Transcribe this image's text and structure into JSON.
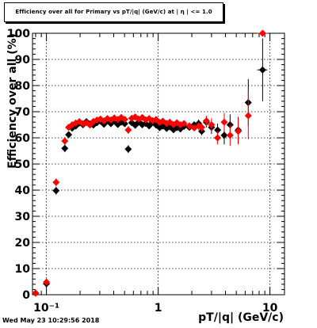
{
  "canvas": {
    "footer_text": "Wed May 23 10:29:56 2018"
  },
  "chart_data": {
    "type": "scatter",
    "title": "Efficiency over all for Primary vs pT/|q| (GeV/c) at | η | <= 1.0",
    "xlabel": "pT/|q| (GeV/c)",
    "ylabel": "Efficiency over all (%)",
    "x_scale": "log",
    "xlim": [
      0.075,
      13.5
    ],
    "ylim": [
      0,
      100
    ],
    "grid": true,
    "x_ticks": [
      {
        "v": 0.1,
        "label": "10⁻¹"
      },
      {
        "v": 1,
        "label": "1"
      },
      {
        "v": 10,
        "label": "10"
      }
    ],
    "y_ticks": [
      0,
      10,
      20,
      30,
      40,
      50,
      60,
      70,
      80,
      90,
      100
    ],
    "series": [
      {
        "color": "#000000",
        "points": [
          {
            "x": 0.08,
            "y": 0.6,
            "xerr": 0.004,
            "yerr": 0.5
          },
          {
            "x": 0.1,
            "y": 4.2,
            "xerr": 0.005,
            "yerr": 1.2
          },
          {
            "x": 0.122,
            "y": 39.8,
            "xerr": 0.006,
            "yerr": 1.5
          },
          {
            "x": 0.146,
            "y": 56.0,
            "xerr": 0.006,
            "yerr": 1.5
          },
          {
            "x": 0.158,
            "y": 61.2,
            "yerr": 1.0
          },
          {
            "x": 0.17,
            "y": 63.7,
            "yerr": 1.0
          },
          {
            "x": 0.183,
            "y": 64.5
          },
          {
            "x": 0.197,
            "y": 65.7
          },
          {
            "x": 0.212,
            "y": 65.0
          },
          {
            "x": 0.228,
            "y": 66.2
          },
          {
            "x": 0.245,
            "y": 65.3
          },
          {
            "x": 0.263,
            "y": 64.9
          },
          {
            "x": 0.283,
            "y": 65.8
          },
          {
            "x": 0.304,
            "y": 66.4
          },
          {
            "x": 0.327,
            "y": 65.2
          },
          {
            "x": 0.351,
            "y": 66.6
          },
          {
            "x": 0.377,
            "y": 65.4
          },
          {
            "x": 0.405,
            "y": 66.5
          },
          {
            "x": 0.435,
            "y": 65.1
          },
          {
            "x": 0.467,
            "y": 66.0
          },
          {
            "x": 0.502,
            "y": 65.4
          },
          {
            "x": 0.54,
            "y": 55.7,
            "yerr": 1.5
          },
          {
            "x": 0.58,
            "y": 65.8
          },
          {
            "x": 0.623,
            "y": 64.8
          },
          {
            "x": 0.67,
            "y": 66.1
          },
          {
            "x": 0.72,
            "y": 65.0
          },
          {
            "x": 0.773,
            "y": 65.5
          },
          {
            "x": 0.83,
            "y": 64.6
          },
          {
            "x": 0.892,
            "y": 66.0
          },
          {
            "x": 0.958,
            "y": 64.9
          },
          {
            "x": 1.03,
            "y": 63.9
          },
          {
            "x": 1.1,
            "y": 64.5
          },
          {
            "x": 1.19,
            "y": 63.6
          },
          {
            "x": 1.27,
            "y": 64.2
          },
          {
            "x": 1.37,
            "y": 63.1,
            "yerr": 1.0
          },
          {
            "x": 1.47,
            "y": 63.9
          },
          {
            "x": 1.58,
            "y": 63.4
          },
          {
            "x": 1.7,
            "y": 64.4
          },
          {
            "x": 1.9,
            "y": 64.0,
            "xerr": 0.06
          },
          {
            "x": 2.1,
            "y": 65.0,
            "xerr": 0.06
          },
          {
            "x": 2.3,
            "y": 65.5,
            "xerr": 0.07,
            "yerr": 1.5
          },
          {
            "x": 2.45,
            "y": 62.5,
            "xerr": 0.07,
            "yerr": 1.5
          },
          {
            "x": 2.7,
            "y": 66.0,
            "xerr": 0.08,
            "yerr": 2.0
          },
          {
            "x": 3.0,
            "y": 64.0,
            "xerr": 0.1,
            "yerr": 2.5
          },
          {
            "x": 3.4,
            "y": 63.0,
            "xerr": 0.15,
            "yerr": 2.5
          },
          {
            "x": 3.9,
            "y": 61.0,
            "xerr": 0.15,
            "yerr": 3.5
          },
          {
            "x": 4.4,
            "y": 65.0,
            "xerr": 0.2,
            "yerr": 4.0
          },
          {
            "x": 5.2,
            "y": 63.0,
            "xerr": 0.3,
            "yerr": 5.0
          },
          {
            "x": 6.4,
            "y": 73.5,
            "xerr": 0.4,
            "yerr": 9.0
          },
          {
            "x": 8.6,
            "y": 86.0,
            "xerr": 0.9,
            "yerr": 12.0
          }
        ]
      },
      {
        "color": "#ff0000",
        "points": [
          {
            "x": 0.08,
            "y": 0.6,
            "xerr": 0.004,
            "yerr": 0.5
          },
          {
            "x": 0.1,
            "y": 4.8,
            "xerr": 0.005,
            "yerr": 1.2
          },
          {
            "x": 0.122,
            "y": 43.0,
            "xerr": 0.006,
            "yerr": 1.5
          },
          {
            "x": 0.146,
            "y": 58.8,
            "xerr": 0.006,
            "yerr": 1.5
          },
          {
            "x": 0.158,
            "y": 64.0,
            "yerr": 1.0
          },
          {
            "x": 0.17,
            "y": 65.0,
            "yerr": 1.0
          },
          {
            "x": 0.183,
            "y": 65.7
          },
          {
            "x": 0.197,
            "y": 66.2
          },
          {
            "x": 0.212,
            "y": 65.4
          },
          {
            "x": 0.228,
            "y": 65.8
          },
          {
            "x": 0.245,
            "y": 64.9
          },
          {
            "x": 0.263,
            "y": 66.3
          },
          {
            "x": 0.283,
            "y": 66.8
          },
          {
            "x": 0.304,
            "y": 67.2
          },
          {
            "x": 0.327,
            "y": 66.5
          },
          {
            "x": 0.351,
            "y": 67.4
          },
          {
            "x": 0.377,
            "y": 66.9
          },
          {
            "x": 0.405,
            "y": 67.6
          },
          {
            "x": 0.435,
            "y": 67.0
          },
          {
            "x": 0.467,
            "y": 67.8
          },
          {
            "x": 0.502,
            "y": 67.1
          },
          {
            "x": 0.54,
            "y": 63.0,
            "yerr": 1.5
          },
          {
            "x": 0.58,
            "y": 67.5
          },
          {
            "x": 0.623,
            "y": 68.0
          },
          {
            "x": 0.67,
            "y": 67.2
          },
          {
            "x": 0.72,
            "y": 67.8
          },
          {
            "x": 0.773,
            "y": 66.9
          },
          {
            "x": 0.83,
            "y": 67.4
          },
          {
            "x": 0.892,
            "y": 66.6
          },
          {
            "x": 0.958,
            "y": 67.0
          },
          {
            "x": 1.03,
            "y": 65.9
          },
          {
            "x": 1.1,
            "y": 66.4
          },
          {
            "x": 1.19,
            "y": 65.5
          },
          {
            "x": 1.27,
            "y": 66.0
          },
          {
            "x": 1.37,
            "y": 65.1,
            "yerr": 1.0
          },
          {
            "x": 1.47,
            "y": 65.8
          },
          {
            "x": 1.58,
            "y": 65.0
          },
          {
            "x": 1.7,
            "y": 65.5
          },
          {
            "x": 1.9,
            "y": 64.6,
            "xerr": 0.06
          },
          {
            "x": 2.1,
            "y": 63.8,
            "xerr": 0.06
          },
          {
            "x": 2.3,
            "y": 64.5,
            "xerr": 0.07,
            "yerr": 1.5
          },
          {
            "x": 2.45,
            "y": 64.0,
            "xerr": 0.07,
            "yerr": 1.5
          },
          {
            "x": 2.7,
            "y": 66.5,
            "xerr": 0.08,
            "yerr": 2.0
          },
          {
            "x": 3.0,
            "y": 65.0,
            "xerr": 0.1,
            "yerr": 2.5
          },
          {
            "x": 3.4,
            "y": 60.0,
            "xerr": 0.15,
            "yerr": 2.5
          },
          {
            "x": 3.9,
            "y": 66.0,
            "xerr": 0.15,
            "yerr": 3.5
          },
          {
            "x": 4.4,
            "y": 61.0,
            "xerr": 0.2,
            "yerr": 4.0
          },
          {
            "x": 5.2,
            "y": 62.5,
            "xerr": 0.3,
            "yerr": 5.0
          },
          {
            "x": 6.4,
            "y": 68.5,
            "xerr": 0.4,
            "yerr": 9.0
          },
          {
            "x": 8.6,
            "y": 100.0,
            "xerr": 0.9,
            "yerr": 0
          }
        ]
      }
    ]
  }
}
